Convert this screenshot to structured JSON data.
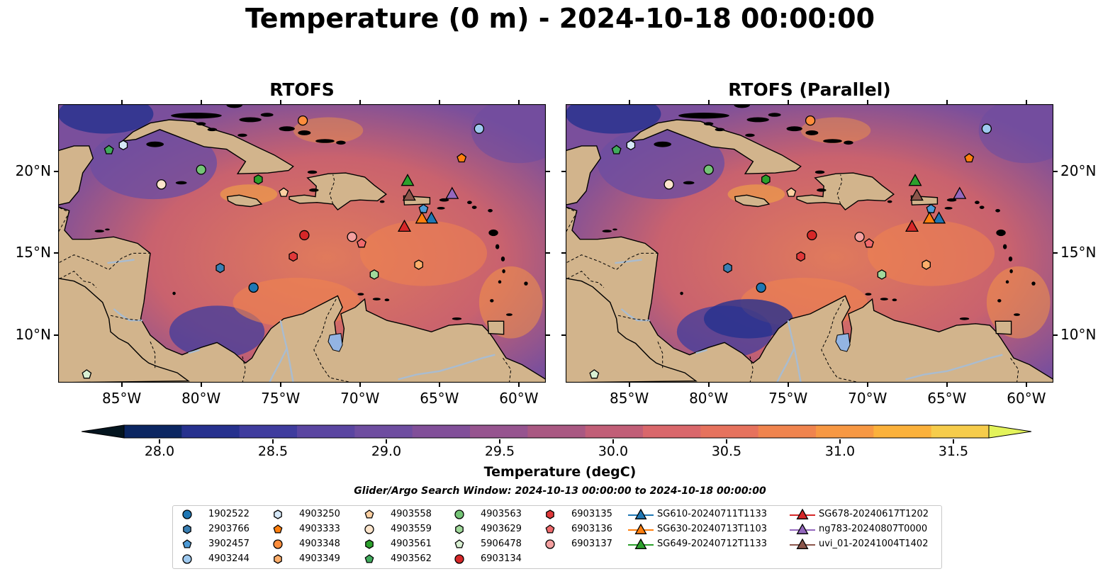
{
  "title": "Temperature (0 m) - 2024-10-18 00:00:00",
  "panels": [
    {
      "title": "RTOFS"
    },
    {
      "title": "RTOFS (Parallel)"
    }
  ],
  "axes": {
    "lon_labels": [
      "85°W",
      "80°W",
      "75°W",
      "70°W",
      "65°W",
      "60°W"
    ],
    "lat_labels": [
      "20°N",
      "15°N",
      "10°N"
    ],
    "lon_range": [
      -89,
      -58.3
    ],
    "lat_range": [
      7.1,
      24.1
    ]
  },
  "colorbar": {
    "label": "Temperature (degC)",
    "ticks": [
      "28.0",
      "28.5",
      "29.0",
      "29.5",
      "30.0",
      "30.5",
      "31.0",
      "31.5"
    ],
    "range": [
      28.0,
      31.5
    ],
    "extend": "both",
    "colors": [
      "#04151f",
      "#0b2662",
      "#26318e",
      "#3f3c9e",
      "#5a45a1",
      "#6e4da0",
      "#814f99",
      "#96548f",
      "#a95882",
      "#c15e77",
      "#d9676b",
      "#e6725d",
      "#f0844e",
      "#f79843",
      "#fbb13b",
      "#f6cc4b",
      "#e3f35b"
    ]
  },
  "search_window": "Glider/Argo Search Window: 2024-10-13 00:00:00 to 2024-10-18 00:00:00",
  "colors": {
    "land": "#d2b48c",
    "lake": "#93b4e2",
    "river": "#a9bcd0"
  },
  "legend": [
    {
      "label": "1902522",
      "marker": "circle",
      "color": "#1f77b4"
    },
    {
      "label": "2903766",
      "marker": "hexagon",
      "color": "#3a7fb3"
    },
    {
      "label": "3902457",
      "marker": "pentagon",
      "color": "#4d9ad6"
    },
    {
      "label": "4903244",
      "marker": "circle",
      "color": "#9ec9ef"
    },
    {
      "label": "4903250",
      "marker": "hexagon",
      "color": "#d6e8f8"
    },
    {
      "label": "4903333",
      "marker": "pentagon",
      "color": "#ff7f0e"
    },
    {
      "label": "4903348",
      "marker": "circle",
      "color": "#fd8d3c"
    },
    {
      "label": "4903349",
      "marker": "hexagon",
      "color": "#fdae6b"
    },
    {
      "label": "4903558",
      "marker": "pentagon",
      "color": "#fdd0a2"
    },
    {
      "label": "4903559",
      "marker": "circle",
      "color": "#fde5cc"
    },
    {
      "label": "4903561",
      "marker": "hexagon",
      "color": "#2ca02c"
    },
    {
      "label": "4903562",
      "marker": "pentagon",
      "color": "#41ab5d"
    },
    {
      "label": "4903563",
      "marker": "circle",
      "color": "#74c476"
    },
    {
      "label": "4903629",
      "marker": "hexagon",
      "color": "#a1d99b"
    },
    {
      "label": "5906478",
      "marker": "pentagon",
      "color": "#d9f0d3"
    },
    {
      "label": "6903134",
      "marker": "circle",
      "color": "#d62728"
    },
    {
      "label": "6903135",
      "marker": "hexagon",
      "color": "#e0383a"
    },
    {
      "label": "6903136",
      "marker": "pentagon",
      "color": "#ef6a6c"
    },
    {
      "label": "6903137",
      "marker": "circle",
      "color": "#f4a0a0"
    },
    {
      "label": "SG610-20240711T1133",
      "marker": "triangle",
      "color": "#1f77b4"
    },
    {
      "label": "SG630-20240713T1103",
      "marker": "triangle",
      "color": "#ff7f0e"
    },
    {
      "label": "SG649-20240712T1133",
      "marker": "triangle",
      "color": "#2ca02c"
    },
    {
      "label": "SG678-20240617T1202",
      "marker": "triangle",
      "color": "#d62728"
    },
    {
      "label": "ng783-20240807T0000",
      "marker": "triangle",
      "color": "#9467bd"
    },
    {
      "label": "uvi_01-20241004T1402",
      "marker": "triangle",
      "color": "#8c564b"
    }
  ],
  "observations": [
    {
      "id": "1902522",
      "lon": -76.7,
      "lat": 12.9
    },
    {
      "id": "2903766",
      "lon": -78.8,
      "lat": 14.1
    },
    {
      "id": "3902457",
      "lon": -66.0,
      "lat": 17.7
    },
    {
      "id": "4903244",
      "lon": -62.5,
      "lat": 22.6
    },
    {
      "id": "4903250",
      "lon": -84.9,
      "lat": 21.6
    },
    {
      "id": "4903333",
      "lon": -63.6,
      "lat": 20.8
    },
    {
      "id": "4903348",
      "lon": -73.6,
      "lat": 23.1
    },
    {
      "id": "4903349",
      "lon": -66.3,
      "lat": 14.3
    },
    {
      "id": "4903558",
      "lon": -74.8,
      "lat": 18.7
    },
    {
      "id": "4903559",
      "lon": -82.5,
      "lat": 19.2
    },
    {
      "id": "4903561",
      "lon": -76.4,
      "lat": 19.5
    },
    {
      "id": "4903562",
      "lon": -85.8,
      "lat": 21.3
    },
    {
      "id": "4903563",
      "lon": -80.0,
      "lat": 20.1
    },
    {
      "id": "4903629",
      "lon": -69.1,
      "lat": 13.7
    },
    {
      "id": "5906478",
      "lon": -87.2,
      "lat": 7.6
    },
    {
      "id": "6903134",
      "lon": -73.5,
      "lat": 16.1
    },
    {
      "id": "6903135",
      "lon": -74.2,
      "lat": 14.8
    },
    {
      "id": "6903136",
      "lon": -69.9,
      "lat": 15.6
    },
    {
      "id": "6903137",
      "lon": -70.5,
      "lat": 16.0
    },
    {
      "id": "SG610-20240711T1133",
      "lon": -65.5,
      "lat": 17.1
    },
    {
      "id": "SG630-20240713T1103",
      "lon": -66.1,
      "lat": 17.1
    },
    {
      "id": "SG649-20240712T1133",
      "lon": -67.0,
      "lat": 19.4
    },
    {
      "id": "SG678-20240617T1202",
      "lon": -67.2,
      "lat": 16.6
    },
    {
      "id": "ng783-20240807T0000",
      "lon": -64.2,
      "lat": 18.6
    },
    {
      "id": "uvi_01-20241004T1402",
      "lon": -66.9,
      "lat": 18.5
    }
  ]
}
